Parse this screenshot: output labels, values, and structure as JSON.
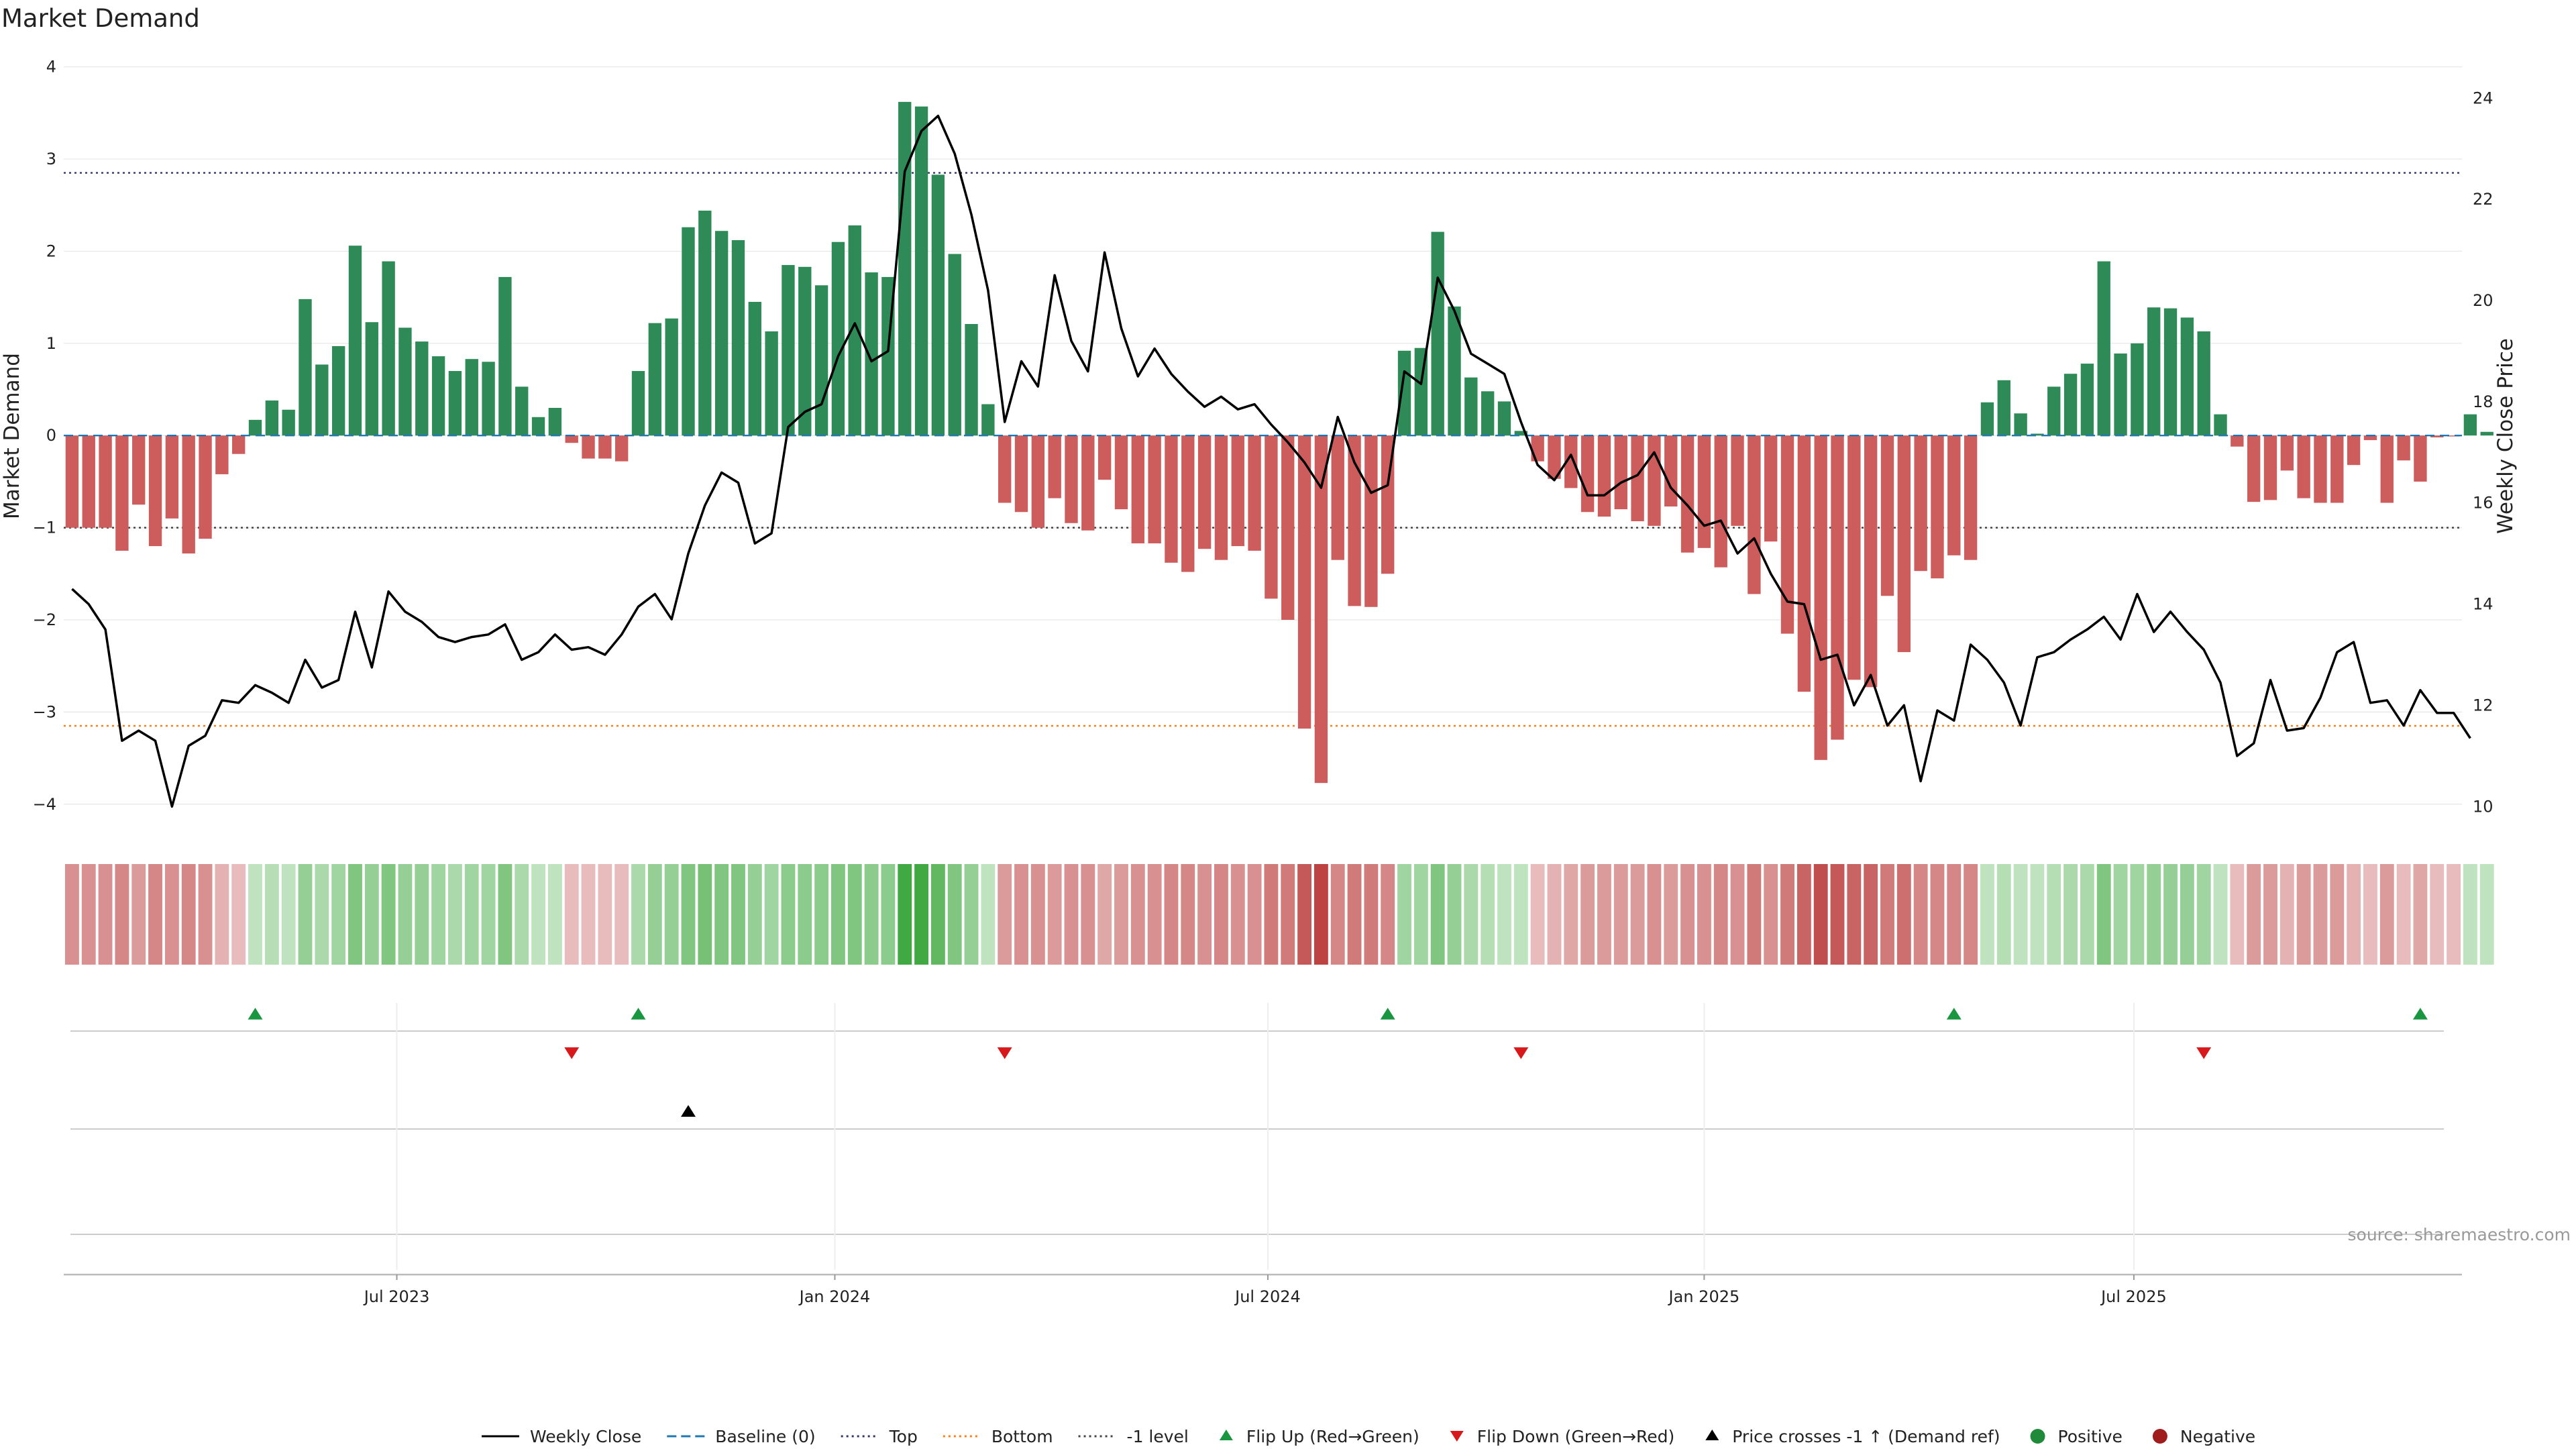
{
  "chart_data": {
    "type": "bar",
    "title": "Market Demand",
    "ylabel": "Market Demand",
    "y2label": "Weekly Close Price",
    "ylim": [
      -4.3,
      4.1
    ],
    "y2lim": [
      9.5,
      24.8
    ],
    "yticks": [
      4,
      3,
      2,
      1,
      0,
      -1,
      -2,
      -3,
      -4
    ],
    "y2ticks": [
      24,
      22,
      20,
      18,
      16,
      14,
      12,
      10
    ],
    "xlim": [
      0,
      144
    ],
    "x_ticks": [
      {
        "label": "Jul 2023",
        "pos": 20
      },
      {
        "label": "Jan 2024",
        "pos": 46.3
      },
      {
        "label": "Jul 2024",
        "pos": 72.3
      },
      {
        "label": "Jan 2025",
        "pos": 98.5
      },
      {
        "label": "Jul 2025",
        "pos": 124.3
      }
    ],
    "levels": {
      "top": 2.85,
      "bottom": -3.15,
      "minus_one": -1.0,
      "baseline": 0
    },
    "demand": [
      -1.0,
      -1.0,
      -1.0,
      -1.25,
      -0.75,
      -1.2,
      -0.9,
      -1.28,
      -1.12,
      -0.42,
      -0.2,
      0.17,
      0.38,
      0.28,
      1.48,
      0.77,
      0.97,
      2.06,
      1.23,
      1.89,
      1.17,
      1.02,
      0.86,
      0.7,
      0.83,
      0.8,
      1.72,
      0.53,
      0.2,
      0.3,
      -0.08,
      -0.25,
      -0.25,
      -0.28,
      0.7,
      1.22,
      1.27,
      2.26,
      2.44,
      2.22,
      2.12,
      1.45,
      1.13,
      1.85,
      1.83,
      1.63,
      2.1,
      2.28,
      1.77,
      1.72,
      3.62,
      3.57,
      2.83,
      1.97,
      1.21,
      0.34,
      -0.73,
      -0.83,
      -1.0,
      -0.68,
      -0.95,
      -1.03,
      -0.48,
      -0.8,
      -1.17,
      -1.17,
      -1.38,
      -1.48,
      -1.23,
      -1.35,
      -1.2,
      -1.25,
      -1.77,
      -2.0,
      -3.18,
      -3.77,
      -1.35,
      -1.85,
      -1.86,
      -1.5,
      0.92,
      0.95,
      2.21,
      1.4,
      0.63,
      0.48,
      0.37,
      0.05,
      -0.28,
      -0.47,
      -0.57,
      -0.83,
      -0.88,
      -0.8,
      -0.93,
      -0.98,
      -0.77,
      -1.27,
      -1.22,
      -1.43,
      -0.98,
      -1.72,
      -1.15,
      -2.15,
      -2.78,
      -3.52,
      -3.3,
      -2.65,
      -2.73,
      -1.74,
      -2.35,
      -1.47,
      -1.55,
      -1.3,
      -1.35,
      0.36,
      0.6,
      0.24,
      0.02,
      0.53,
      0.67,
      0.78,
      1.89,
      0.89,
      1.0,
      1.39,
      1.38,
      1.28,
      1.13,
      0.23,
      -0.12,
      -0.72,
      -0.7,
      -0.38,
      -0.68,
      -0.73,
      -0.73,
      -0.32,
      -0.05,
      -0.73,
      -0.27,
      -0.5,
      -0.02,
      -0.01,
      0.23,
      0.04
    ],
    "weekly_close": [
      14.3,
      14.0,
      13.5,
      11.3,
      11.5,
      11.3,
      10.0,
      11.2,
      11.4,
      12.1,
      12.05,
      12.4,
      12.25,
      12.05,
      12.9,
      12.35,
      12.5,
      13.85,
      12.75,
      14.25,
      13.85,
      13.65,
      13.35,
      13.25,
      13.35,
      13.4,
      13.6,
      12.9,
      13.05,
      13.4,
      13.1,
      13.15,
      13.0,
      13.4,
      13.95,
      14.2,
      13.7,
      15.0,
      15.95,
      16.6,
      16.4,
      15.2,
      15.4,
      17.5,
      17.8,
      17.95,
      18.9,
      19.55,
      18.8,
      19.0,
      22.55,
      23.35,
      23.65,
      22.9,
      21.7,
      20.2,
      17.6,
      18.8,
      18.3,
      20.5,
      19.2,
      18.6,
      20.95,
      19.45,
      18.5,
      19.05,
      18.55,
      18.2,
      17.9,
      18.1,
      17.85,
      17.95,
      17.55,
      17.2,
      16.8,
      16.3,
      17.7,
      16.8,
      16.2,
      16.35,
      18.6,
      18.35,
      20.45,
      19.8,
      18.95,
      18.75,
      18.55,
      17.6,
      16.75,
      16.45,
      16.95,
      16.15,
      16.15,
      16.4,
      16.55,
      17.0,
      16.3,
      15.95,
      15.55,
      15.65,
      15.0,
      15.3,
      14.6,
      14.05,
      14.0,
      12.9,
      13.0,
      12.0,
      12.6,
      11.6,
      12.0,
      10.5,
      11.9,
      11.7,
      13.2,
      12.9,
      12.45,
      11.6,
      12.95,
      13.05,
      13.3,
      13.5,
      13.75,
      13.3,
      14.2,
      13.45,
      13.85,
      13.45,
      13.1,
      12.45,
      11.0,
      11.25,
      12.5,
      11.5,
      11.55,
      12.15,
      13.05,
      13.25,
      12.05,
      12.1,
      11.6,
      12.3,
      11.85,
      11.85,
      11.35
    ],
    "strip_intensity": [
      0.5,
      0.5,
      0.5,
      0.55,
      0.45,
      0.55,
      0.5,
      0.55,
      0.5,
      0.35,
      0.3,
      0.3,
      0.35,
      0.3,
      0.5,
      0.4,
      0.45,
      0.6,
      0.5,
      0.6,
      0.5,
      0.5,
      0.45,
      0.4,
      0.45,
      0.45,
      0.6,
      0.4,
      0.3,
      0.3,
      0.3,
      0.3,
      0.3,
      0.3,
      0.4,
      0.5,
      0.5,
      0.6,
      0.65,
      0.6,
      0.6,
      0.5,
      0.45,
      0.55,
      0.55,
      0.55,
      0.6,
      0.6,
      0.55,
      0.55,
      0.9,
      0.9,
      0.75,
      0.6,
      0.5,
      0.3,
      0.45,
      0.5,
      0.5,
      0.45,
      0.5,
      0.5,
      0.4,
      0.45,
      0.5,
      0.5,
      0.55,
      0.55,
      0.5,
      0.55,
      0.5,
      0.5,
      0.6,
      0.6,
      0.75,
      0.85,
      0.55,
      0.6,
      0.6,
      0.55,
      0.45,
      0.45,
      0.6,
      0.5,
      0.4,
      0.35,
      0.3,
      0.3,
      0.3,
      0.35,
      0.4,
      0.45,
      0.45,
      0.45,
      0.45,
      0.5,
      0.45,
      0.5,
      0.5,
      0.55,
      0.5,
      0.6,
      0.5,
      0.6,
      0.7,
      0.8,
      0.75,
      0.7,
      0.7,
      0.6,
      0.65,
      0.55,
      0.55,
      0.55,
      0.55,
      0.3,
      0.35,
      0.3,
      0.3,
      0.35,
      0.4,
      0.4,
      0.6,
      0.45,
      0.45,
      0.5,
      0.5,
      0.5,
      0.45,
      0.3,
      0.3,
      0.45,
      0.45,
      0.35,
      0.45,
      0.45,
      0.45,
      0.35,
      0.3,
      0.45,
      0.3,
      0.4,
      0.3,
      0.3,
      0.3,
      0.3
    ],
    "flip_up": [
      11,
      34,
      79,
      113,
      141
    ],
    "flip_down": [
      30,
      56,
      87,
      128
    ],
    "price_cross": [
      37
    ],
    "legend": [
      {
        "label": "Weekly Close",
        "kind": "line-solid",
        "color": "#000000"
      },
      {
        "label": "Baseline (0)",
        "kind": "line-dashed",
        "color": "#1f77b4"
      },
      {
        "label": "Top",
        "kind": "line-dotted",
        "color": "#333366"
      },
      {
        "label": "Bottom",
        "kind": "line-dotted",
        "color": "#ff7f0e"
      },
      {
        "label": "-1 level",
        "kind": "line-dotted",
        "color": "#444444"
      },
      {
        "label": "Flip Up (Red→Green)",
        "kind": "tri-up",
        "color": "#1a9641"
      },
      {
        "label": "Flip Down (Green→Red)",
        "kind": "tri-down",
        "color": "#d7191c"
      },
      {
        "label": "Price crosses -1 ↑ (Demand ref)",
        "kind": "tri-up",
        "color": "#000000"
      },
      {
        "label": "Positive",
        "kind": "dot",
        "color": "#1e8a3a"
      },
      {
        "label": "Negative",
        "kind": "dot",
        "color": "#a01d1d"
      }
    ],
    "source": "source: sharemaestro.com"
  },
  "colors": {
    "positive": "#2e8b57",
    "negative": "#cd5c5c",
    "price": "#000000",
    "baseline": "#1f77b4",
    "top": "#333366",
    "bottom": "#ff7f0e",
    "minus_one": "#444444",
    "flip_up": "#1a9641",
    "flip_down": "#d7191c",
    "grid": "#e6e6e6"
  }
}
